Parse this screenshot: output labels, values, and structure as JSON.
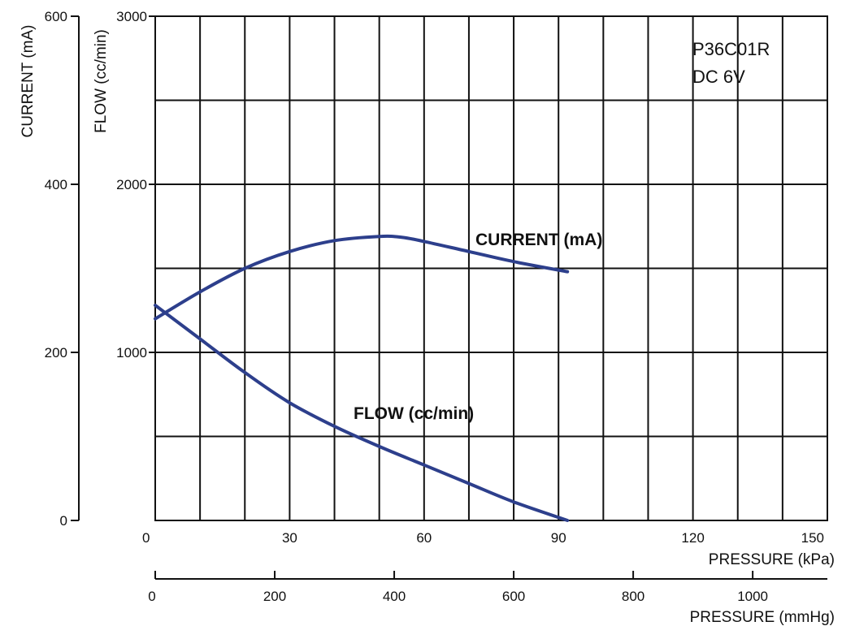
{
  "colors": {
    "curve": "#2d3f8c",
    "grid": "#111111"
  },
  "chart_data": {
    "type": "line",
    "title": "",
    "annotation_lines": [
      "P36C01R",
      "DC 6V"
    ],
    "x_axes": [
      {
        "label": "PRESSURE (kPa)",
        "range": [
          0,
          150
        ],
        "ticks": [
          "0",
          "30",
          "60",
          "90",
          "120",
          "150"
        ],
        "tick_values": [
          0,
          30,
          60,
          90,
          120,
          150
        ]
      },
      {
        "label": "PRESSURE (mmHg)",
        "range": [
          0,
          1125
        ],
        "ticks": [
          "0",
          "200",
          "400",
          "600",
          "800",
          "1000"
        ],
        "tick_values": [
          0,
          200,
          400,
          600,
          800,
          1000
        ]
      }
    ],
    "y_axes": [
      {
        "label": "CURRENT (mA)",
        "range": [
          0,
          600
        ],
        "ticks": [
          "0",
          "200",
          "400",
          "600"
        ],
        "tick_values": [
          0,
          200,
          400,
          600
        ]
      },
      {
        "label": "FLOW (cc/min)",
        "range": [
          0,
          3000
        ],
        "ticks": [
          "1000",
          "2000",
          "3000"
        ],
        "tick_values": [
          1000,
          2000,
          3000
        ]
      }
    ],
    "grid": true,
    "series": [
      {
        "name": "CURRENT (mA)",
        "y_axis": "CURRENT (mA)",
        "x": [
          0,
          10,
          20,
          30,
          40,
          50,
          55,
          60,
          70,
          80,
          92
        ],
        "y": [
          240,
          272,
          300,
          320,
          333,
          338,
          337,
          332,
          320,
          308,
          296
        ]
      },
      {
        "name": "FLOW (cc/min)",
        "y_axis": "FLOW (cc/min)",
        "x": [
          0,
          10,
          20,
          30,
          40,
          50,
          60,
          70,
          80,
          92
        ],
        "y": [
          1280,
          1080,
          880,
          700,
          560,
          440,
          330,
          220,
          110,
          0
        ]
      }
    ]
  }
}
